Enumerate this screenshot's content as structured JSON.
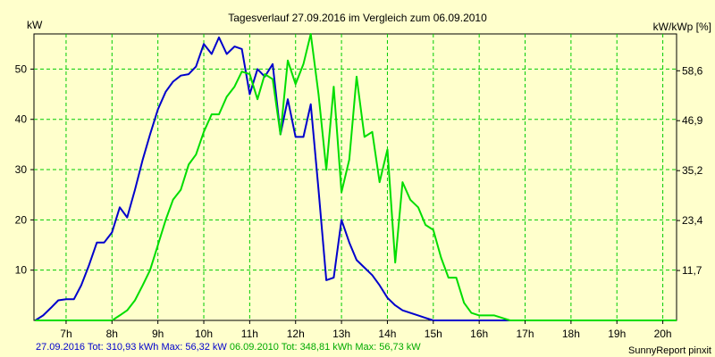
{
  "chart_data": {
    "type": "line",
    "title": "Tagesverlauf 27.09.2016 im Vergleich zum 06.09.2010",
    "ylabel_left": "kW",
    "ylabel_right": "kW/kWp [%]",
    "xlim": [
      6.3,
      20.3
    ],
    "ylim": [
      0,
      57
    ],
    "x_ticks": [
      {
        "value": 7,
        "label": "7h"
      },
      {
        "value": 8,
        "label": "8h"
      },
      {
        "value": 9,
        "label": "9h"
      },
      {
        "value": 10,
        "label": "10h"
      },
      {
        "value": 11,
        "label": "11h"
      },
      {
        "value": 12,
        "label": "12h"
      },
      {
        "value": 13,
        "label": "13h"
      },
      {
        "value": 14,
        "label": "14h"
      },
      {
        "value": 15,
        "label": "15h"
      },
      {
        "value": 16,
        "label": "16h"
      },
      {
        "value": 17,
        "label": "17h"
      },
      {
        "value": 18,
        "label": "18h"
      },
      {
        "value": 19,
        "label": "19h"
      },
      {
        "value": 20,
        "label": "20h"
      }
    ],
    "y_ticks_left": [
      10,
      20,
      30,
      40,
      50
    ],
    "y_ticks_right": [
      {
        "value": 9.93,
        "label": "11,7"
      },
      {
        "value": 19.87,
        "label": "23,4"
      },
      {
        "value": 29.8,
        "label": "35,2"
      },
      {
        "value": 39.74,
        "label": "46,9"
      },
      {
        "value": 49.67,
        "label": "58,6"
      }
    ],
    "grid": true,
    "series": [
      {
        "color": "#0000cc",
        "x": [
          6.33,
          6.5,
          6.67,
          6.83,
          7.0,
          7.17,
          7.33,
          7.5,
          7.67,
          7.83,
          8.0,
          8.17,
          8.33,
          8.5,
          8.67,
          8.83,
          9.0,
          9.17,
          9.33,
          9.5,
          9.67,
          9.83,
          10.0,
          10.17,
          10.33,
          10.5,
          10.67,
          10.83,
          11.0,
          11.17,
          11.33,
          11.5,
          11.67,
          11.83,
          12.0,
          12.17,
          12.33,
          12.5,
          12.67,
          12.83,
          13.0,
          13.17,
          13.33,
          13.5,
          13.67,
          13.83,
          14.0,
          14.17,
          14.33,
          14.5,
          14.67,
          14.83,
          15.0,
          15.17,
          15.33,
          15.5,
          15.67,
          15.83,
          16.0,
          16.17,
          16.33,
          16.5,
          16.67,
          16.83,
          17.0,
          17.17,
          17.33,
          17.5,
          17.67,
          17.83,
          18.0,
          18.17,
          18.33,
          18.5
        ],
        "values": [
          0,
          1,
          2.5,
          4,
          4.2,
          4.2,
          7,
          11,
          15.5,
          15.5,
          17.5,
          22.5,
          20.5,
          26,
          32,
          37,
          42,
          45.5,
          47.5,
          48.7,
          49,
          50.5,
          55,
          53,
          56.3,
          53,
          54.5,
          54,
          45,
          50,
          48.5,
          51,
          37,
          44,
          36.5,
          36.5,
          43,
          26,
          8,
          8.5,
          20,
          15.5,
          12,
          10.5,
          9,
          7,
          4.5,
          3,
          2,
          1.5,
          1,
          0.5,
          0,
          0,
          0,
          0,
          0,
          0,
          0,
          0,
          0,
          0,
          0,
          0,
          0,
          0,
          0,
          0,
          0,
          0,
          0,
          0,
          0,
          0
        ]
      },
      {
        "color": "#00dd00",
        "x": [
          6.33,
          6.5,
          6.67,
          6.83,
          7.0,
          7.17,
          7.33,
          7.5,
          7.67,
          7.83,
          8.0,
          8.17,
          8.33,
          8.5,
          8.67,
          8.83,
          9.0,
          9.17,
          9.33,
          9.5,
          9.67,
          9.83,
          10.0,
          10.17,
          10.33,
          10.5,
          10.67,
          10.83,
          11.0,
          11.17,
          11.33,
          11.5,
          11.67,
          11.83,
          12.0,
          12.17,
          12.33,
          12.5,
          12.67,
          12.83,
          13.0,
          13.17,
          13.33,
          13.5,
          13.67,
          13.83,
          14.0,
          14.17,
          14.33,
          14.5,
          14.67,
          14.83,
          15.0,
          15.17,
          15.33,
          15.5,
          15.67,
          15.83,
          16.0,
          16.17,
          16.33,
          16.5,
          16.67,
          16.83,
          17.0,
          17.17,
          17.33,
          17.5,
          17.67,
          17.83,
          18.0,
          18.17,
          18.33,
          18.5,
          18.67,
          18.83,
          19.0,
          19.17,
          19.33,
          19.5,
          19.67,
          19.83,
          20.0,
          20.17,
          20.3
        ],
        "values": [
          0,
          0,
          0,
          0,
          0,
          0,
          0,
          0,
          0,
          0,
          0,
          1,
          2,
          4,
          7,
          10,
          15,
          20,
          24,
          26,
          31,
          33,
          37.5,
          41,
          41,
          44.5,
          46.5,
          49.5,
          49,
          44,
          49,
          48,
          37,
          51.7,
          47,
          51,
          57,
          45,
          30,
          46.5,
          25.5,
          32,
          48.5,
          36.5,
          37.5,
          27.5,
          34,
          11.5,
          27.5,
          24,
          22.5,
          19,
          18,
          12.5,
          8.5,
          8.5,
          3.5,
          1.5,
          1,
          1,
          1,
          0.5,
          0,
          0,
          0,
          0,
          0,
          0,
          0,
          0,
          0,
          0,
          0,
          0,
          0,
          0,
          0,
          0,
          0,
          0,
          0,
          0,
          0,
          0,
          0
        ]
      }
    ]
  },
  "footer": {
    "series1_text": "27.09.2016 Tot: 310,93 kWh Max: 56,32 kW",
    "series2_text": " 06.09.2010 Tot: 348,81 kWh Max: 56,73 kW",
    "credit": "SunnyReport pinxit"
  }
}
